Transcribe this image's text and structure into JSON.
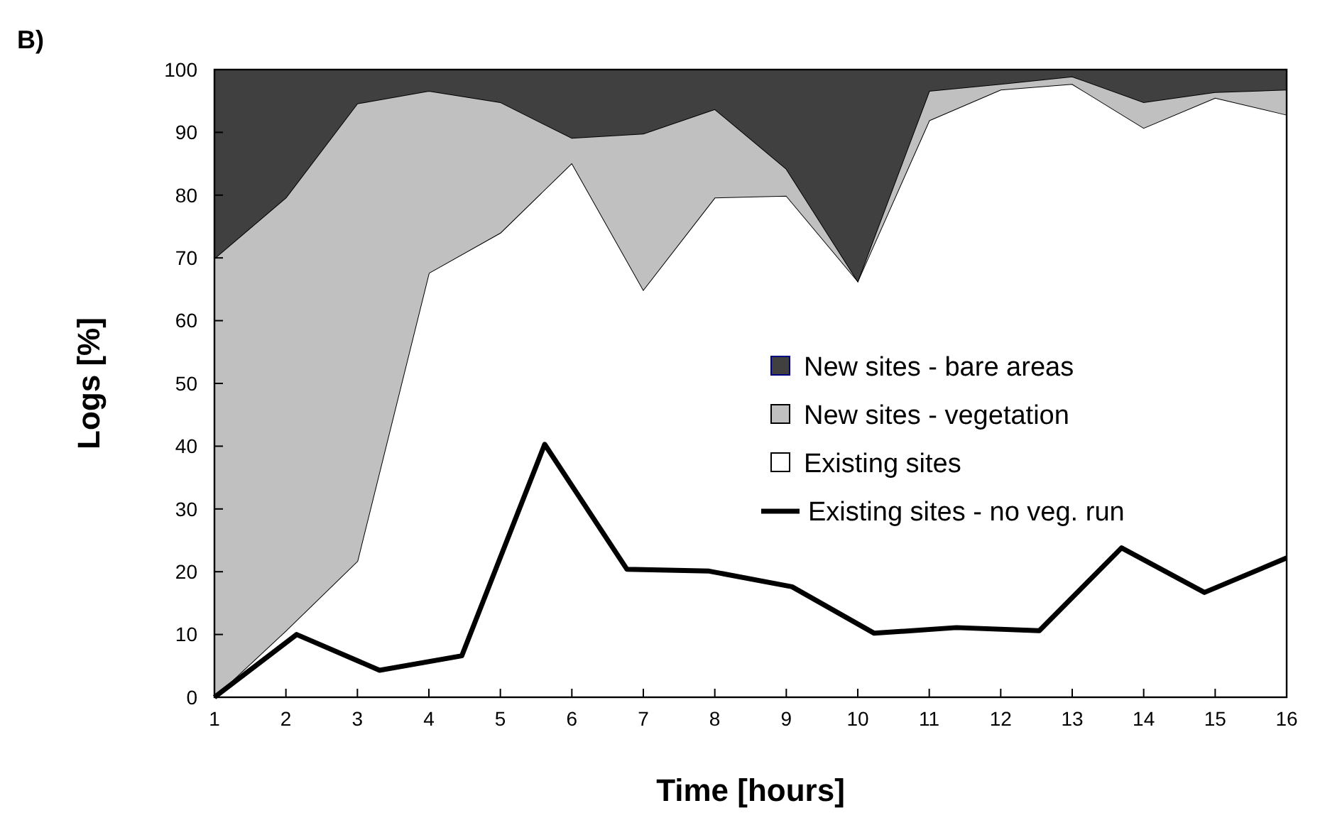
{
  "chart_data": {
    "type": "area",
    "title": "B)",
    "xlabel": "Time [hours]",
    "ylabel": "Logs [%]",
    "stacked": true,
    "x": [
      1,
      2,
      3,
      4,
      5,
      6,
      7,
      8,
      9,
      10,
      11,
      12,
      13,
      14,
      15,
      16
    ],
    "series": [
      {
        "name": "Existing sites",
        "color": "#ffffff",
        "values": [
          0,
          10.6,
          21.7,
          67.6,
          74,
          85.1,
          64.9,
          79.6,
          79.9,
          66.3,
          91.9,
          96.8,
          97.7,
          90.7,
          95.5,
          92.8
        ]
      },
      {
        "name": "New sites - vegetation",
        "color": "#c0c0c0",
        "values": [
          69.9,
          69.0,
          72.9,
          29.0,
          20.8,
          4.0,
          24.9,
          14.1,
          4.3,
          0,
          4.7,
          0.9,
          1.2,
          4.1,
          0.9,
          4.0
        ]
      },
      {
        "name": "New sites - bare areas",
        "color": "#404040",
        "values": [
          30.1,
          20.4,
          5.4,
          3.4,
          5.2,
          10.9,
          10.2,
          6.3,
          15.8,
          33.7,
          3.4,
          2.3,
          1.1,
          5.2,
          3.6,
          3.2
        ]
      },
      {
        "name": "Existing sites - no veg. run",
        "type": "line",
        "color": "#000000",
        "x": [
          1,
          2.15,
          3.31,
          4.46,
          5.62,
          6.77,
          7.92,
          9.08,
          10.23,
          11.38,
          12.54,
          13.69,
          14.85,
          16
        ],
        "values": [
          0,
          10.0,
          4.3,
          6.6,
          40.3,
          20.4,
          20.1,
          17.6,
          10.2,
          11.1,
          10.6,
          23.8,
          16.7,
          22.2
        ]
      }
    ],
    "xlim": [
      1,
      16
    ],
    "xticks": [
      1,
      2,
      3,
      4,
      5,
      6,
      7,
      8,
      9,
      10,
      11,
      12,
      13,
      14,
      15,
      16
    ],
    "ylim": [
      0,
      100
    ],
    "yticks": [
      0,
      10,
      20,
      30,
      40,
      50,
      60,
      70,
      80,
      90,
      100
    ],
    "legend": "right"
  }
}
